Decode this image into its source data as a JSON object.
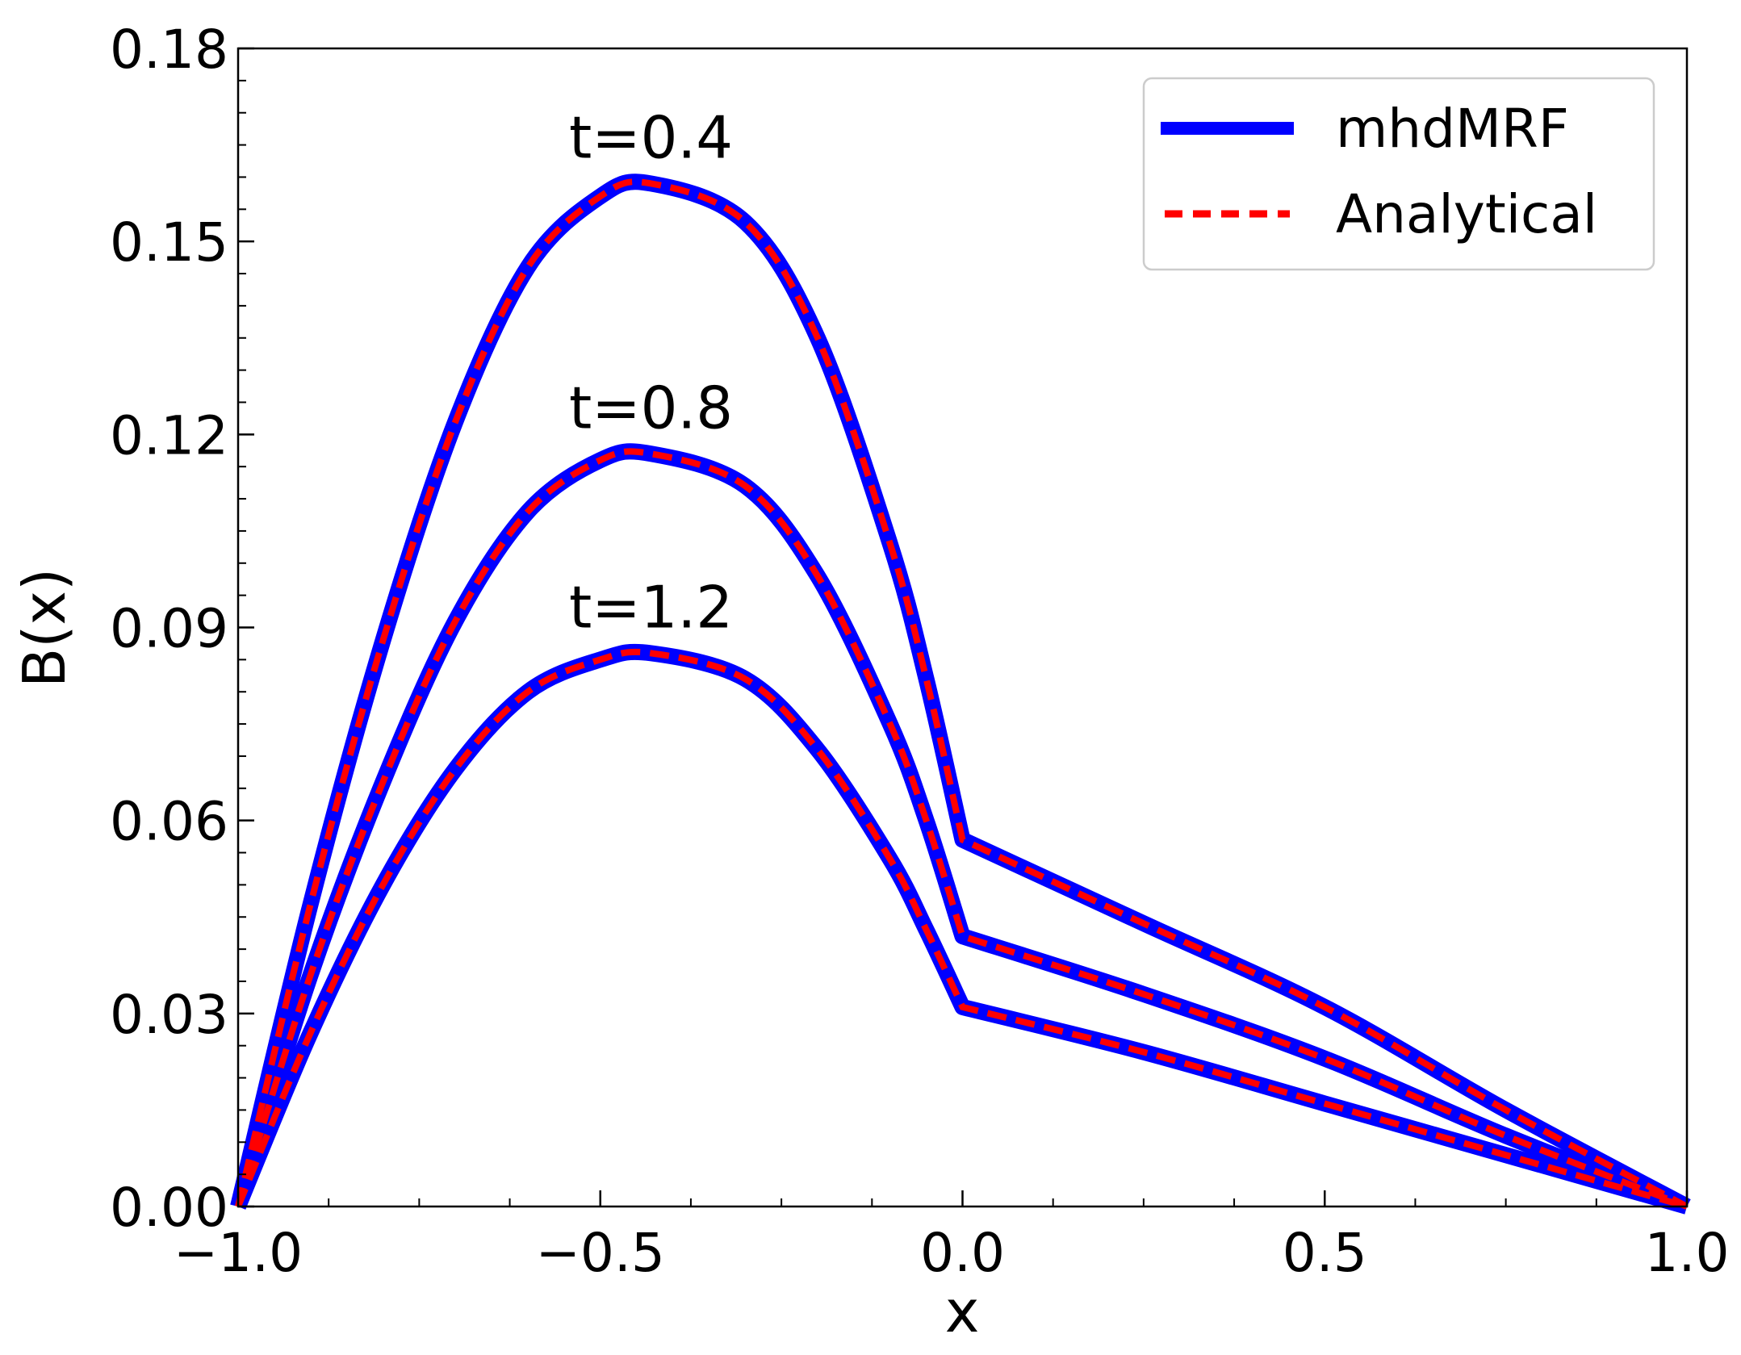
{
  "chart_data": {
    "type": "line",
    "title": "",
    "xlabel": "x",
    "ylabel": "B(x)",
    "xlim": [
      -1.0,
      1.0
    ],
    "ylim": [
      0.0,
      0.18
    ],
    "xticks": [
      -1.0,
      -0.5,
      0.0,
      0.5,
      1.0
    ],
    "xtick_labels": [
      "−1.0",
      "−0.5",
      "0.0",
      "0.5",
      "1.0"
    ],
    "yticks": [
      0.0,
      0.03,
      0.06,
      0.09,
      0.12,
      0.15,
      0.18
    ],
    "ytick_labels": [
      "0.00",
      "0.03",
      "0.06",
      "0.09",
      "0.12",
      "0.15",
      "0.18"
    ],
    "grid": false,
    "legend": {
      "position": "top-right",
      "entries": [
        {
          "label": "mhdMRF",
          "color": "#0000ff",
          "style": "solid"
        },
        {
          "label": "Analytical",
          "color": "#ff0000",
          "style": "dashed"
        }
      ]
    },
    "colors": {
      "mhdMRF": "#0000ff",
      "Analytical": "#ff0000"
    },
    "annotations": [
      {
        "text": "t=0.4",
        "x": -0.43,
        "y": 0.161
      },
      {
        "text": "t=0.8",
        "x": -0.43,
        "y": 0.119
      },
      {
        "text": "t=1.2",
        "x": -0.43,
        "y": 0.088
      }
    ],
    "curves": [
      {
        "label": "t=0.4",
        "x": [
          -1.0,
          -0.9,
          -0.8,
          -0.7,
          -0.6,
          -0.5,
          -0.43,
          -0.3,
          -0.2,
          -0.1,
          -0.05,
          0.0,
          0.25,
          0.5,
          0.75,
          1.0
        ],
        "y": [
          0.0,
          0.047,
          0.088,
          0.122,
          0.146,
          0.157,
          0.159,
          0.153,
          0.135,
          0.103,
          0.082,
          0.057,
          0.044,
          0.031,
          0.015,
          0.0
        ]
      },
      {
        "label": "t=0.8",
        "x": [
          -1.0,
          -0.9,
          -0.8,
          -0.7,
          -0.6,
          -0.5,
          -0.43,
          -0.3,
          -0.2,
          -0.1,
          -0.05,
          0.0,
          0.25,
          0.5,
          0.75,
          1.0
        ],
        "y": [
          0.0,
          0.036,
          0.066,
          0.091,
          0.108,
          0.116,
          0.117,
          0.112,
          0.098,
          0.075,
          0.06,
          0.042,
          0.033,
          0.023,
          0.011,
          0.0
        ]
      },
      {
        "label": "t=1.2",
        "x": [
          -1.0,
          -0.9,
          -0.8,
          -0.7,
          -0.6,
          -0.5,
          -0.43,
          -0.3,
          -0.2,
          -0.1,
          -0.05,
          0.0,
          0.25,
          0.5,
          0.75,
          1.0
        ],
        "y": [
          0.0,
          0.027,
          0.05,
          0.068,
          0.08,
          0.085,
          0.086,
          0.082,
          0.071,
          0.054,
          0.043,
          0.031,
          0.024,
          0.016,
          0.008,
          0.0
        ]
      }
    ]
  }
}
